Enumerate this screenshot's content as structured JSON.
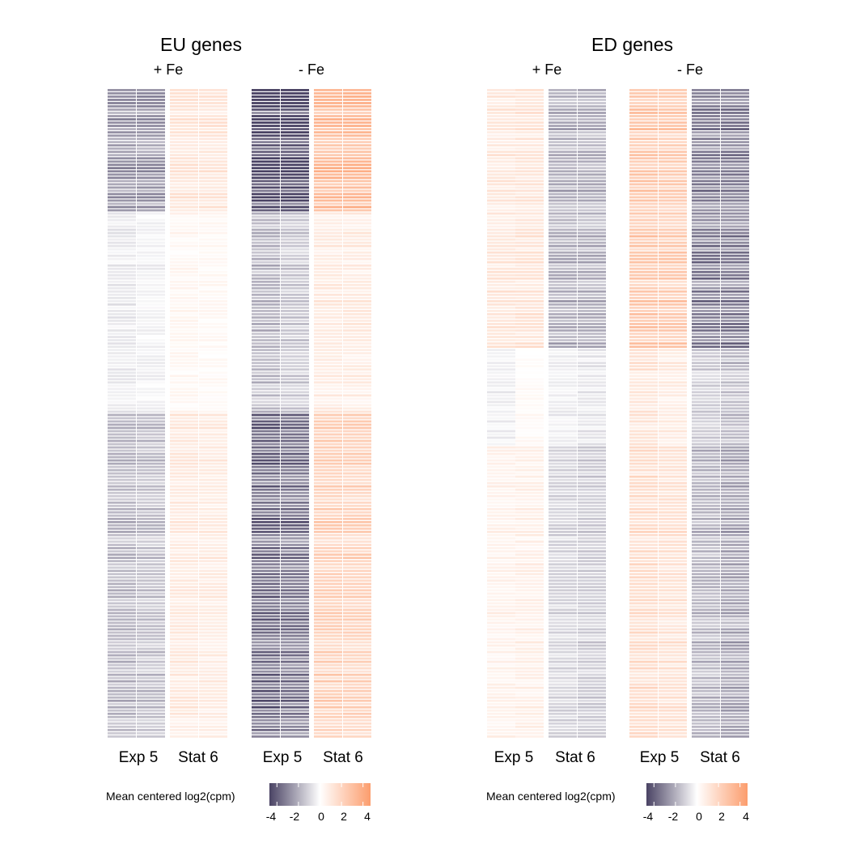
{
  "chart_data": [
    {
      "type": "heatmap",
      "title": "EU genes",
      "conditions": [
        "+ Fe",
        "- Fe"
      ],
      "categories": [
        "Exp 5",
        "Stat 6"
      ],
      "columns_per_category": 2,
      "n_rows": 200,
      "legend": {
        "title": "Mean centered log2(cpm)",
        "ticks": [
          "-4",
          "-2",
          "0",
          "2",
          "4"
        ],
        "range": [
          -4.7,
          4.7
        ],
        "colors": [
          "#4a4364",
          "#ffffff",
          "#fc9d6d"
        ]
      },
      "segments": [
        {
          "rows": 38,
          "values": [
            -2.4,
            -2.4,
            1.1,
            1.1,
            -4.3,
            -4.3,
            2.9,
            2.9
          ]
        },
        {
          "rows": 62,
          "values": [
            -0.5,
            -0.3,
            0.4,
            0.3,
            -1.7,
            -1.3,
            0.9,
            0.9
          ]
        },
        {
          "rows": 100,
          "values": [
            -1.7,
            -1.5,
            1.0,
            0.9,
            -3.5,
            -3.3,
            2.1,
            2.0
          ]
        }
      ]
    },
    {
      "type": "heatmap",
      "title": "ED genes",
      "conditions": [
        "+ Fe",
        "- Fe"
      ],
      "categories": [
        "Exp 5",
        "Stat 6"
      ],
      "columns_per_category": 2,
      "n_rows": 200,
      "legend": {
        "title": "Mean centered log2(cpm)",
        "ticks": [
          "-4",
          "-2",
          "0",
          "2",
          "4"
        ],
        "range": [
          -4.7,
          4.7
        ],
        "colors": [
          "#4a4364",
          "#ffffff",
          "#fc9d6d"
        ]
      },
      "segments": [
        {
          "rows": 80,
          "values": [
            1.1,
            1.2,
            -1.9,
            -1.9,
            2.4,
            2.3,
            -3.0,
            -3.0
          ]
        },
        {
          "rows": 30,
          "values": [
            -0.4,
            0.2,
            -0.4,
            -0.6,
            1.2,
            0.8,
            -1.2,
            -1.5
          ]
        },
        {
          "rows": 90,
          "values": [
            0.6,
            0.7,
            -1.0,
            -1.2,
            1.5,
            1.3,
            -1.7,
            -2.1
          ]
        }
      ]
    }
  ]
}
